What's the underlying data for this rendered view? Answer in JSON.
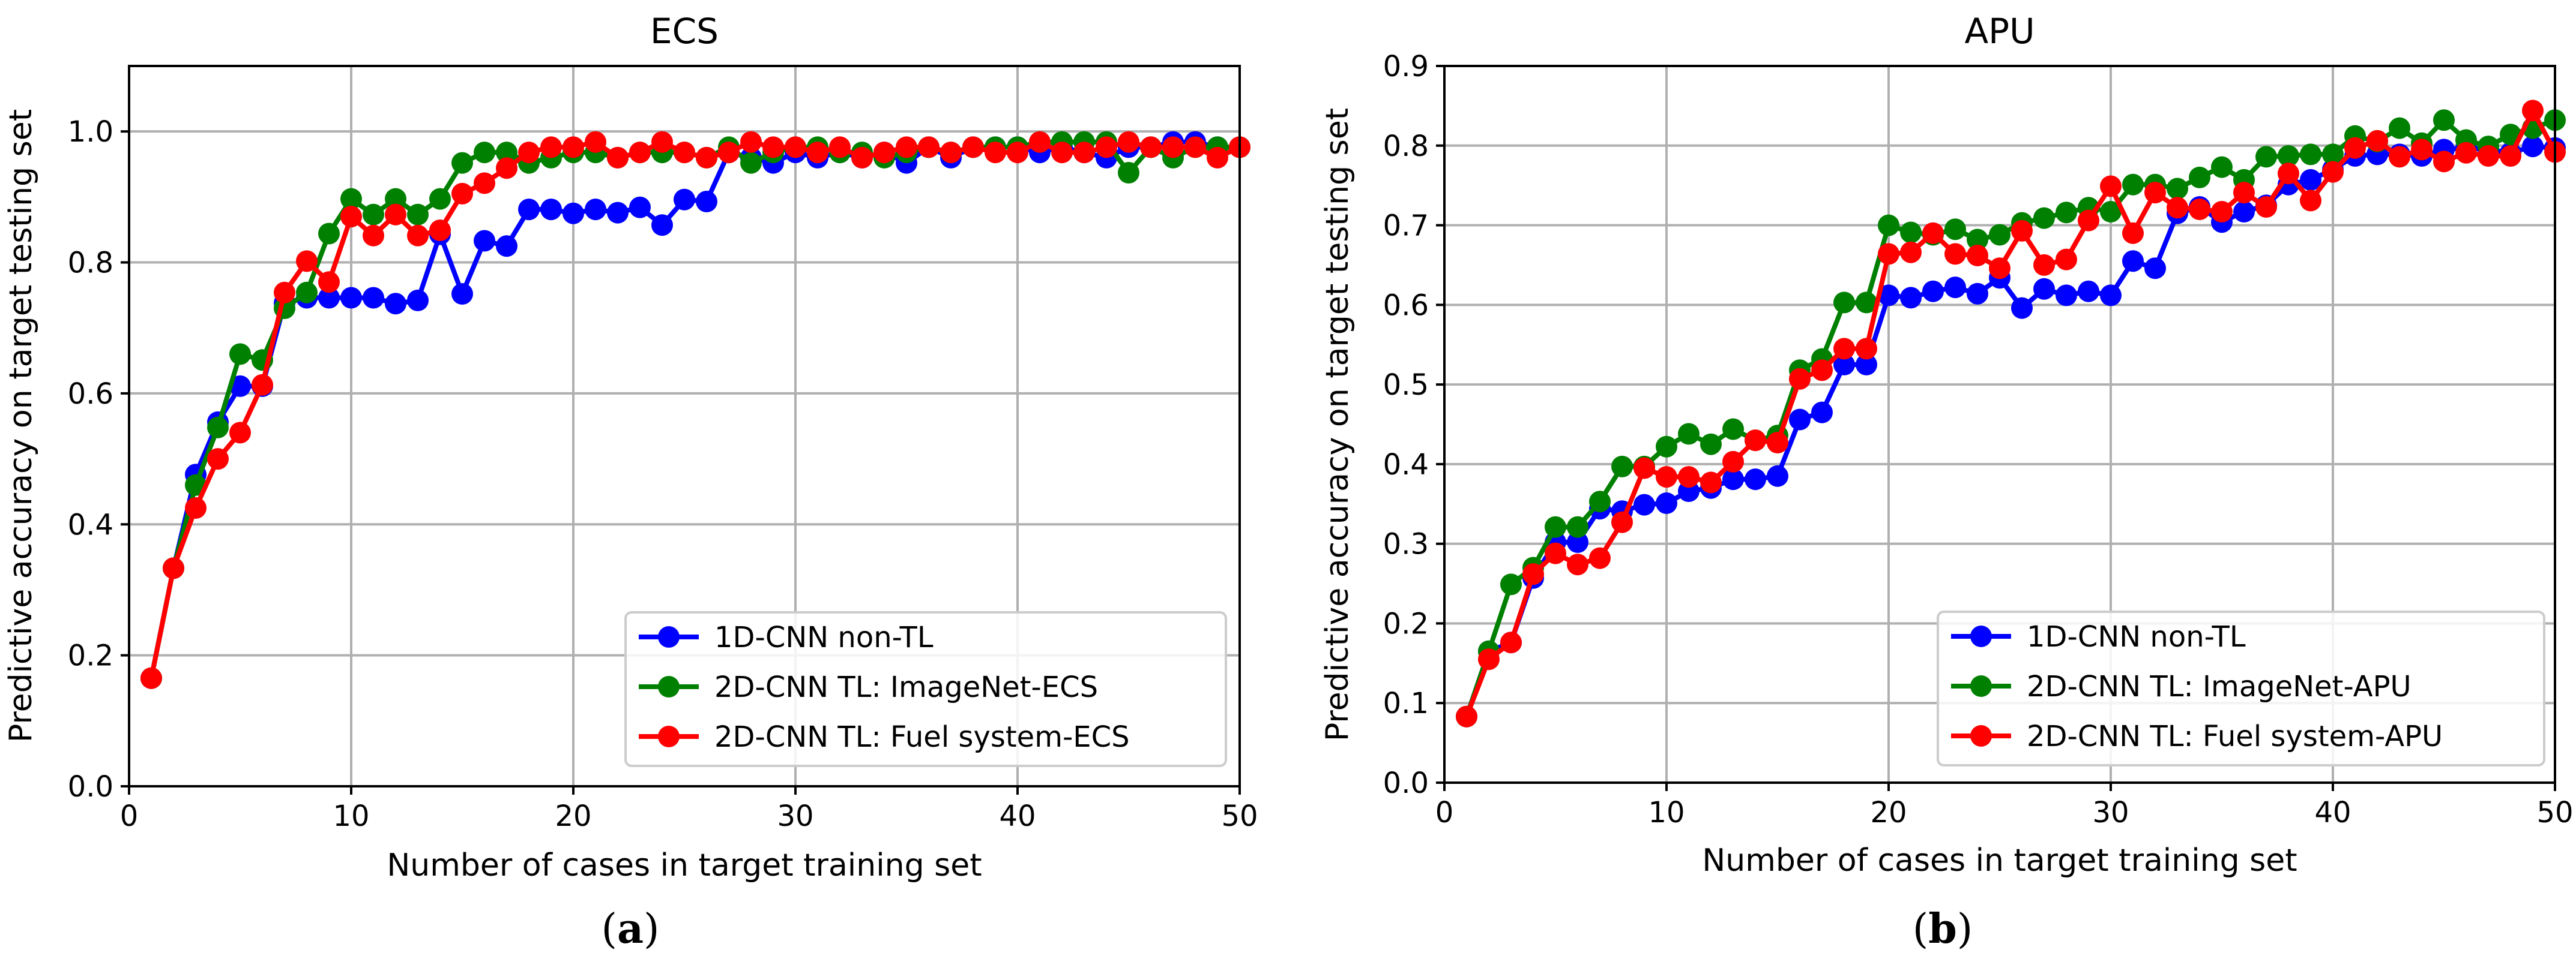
{
  "panels": [
    {
      "label_open": "(",
      "label_letter": "a",
      "label_close": ")"
    },
    {
      "label_open": "(",
      "label_letter": "b",
      "label_close": ")"
    }
  ],
  "chart_data": [
    {
      "type": "line",
      "title": "ECS",
      "xlabel": "Number of cases in target training set",
      "ylabel": "Predictive accuracy on target testing set",
      "xlim": [
        0,
        50
      ],
      "ylim": [
        0,
        1.1
      ],
      "xticks": [
        0,
        10,
        20,
        30,
        40,
        50
      ],
      "xtick_labels": [
        "0",
        "10",
        "20",
        "30",
        "40",
        "50"
      ],
      "yticks": [
        0,
        0.2,
        0.4,
        0.6,
        0.8,
        1.0
      ],
      "ytick_labels": [
        "0.0",
        "0.2",
        "0.4",
        "0.6",
        "0.8",
        "1.0"
      ],
      "grid": true,
      "legend_position": "bottom-right",
      "x": [
        1,
        2,
        3,
        4,
        5,
        6,
        7,
        8,
        9,
        10,
        11,
        12,
        13,
        14,
        15,
        16,
        17,
        18,
        19,
        20,
        21,
        22,
        23,
        24,
        25,
        26,
        27,
        28,
        29,
        30,
        31,
        32,
        33,
        34,
        35,
        36,
        37,
        38,
        39,
        40,
        41,
        42,
        43,
        44,
        45,
        46,
        47,
        48,
        49,
        50
      ],
      "series": [
        {
          "name": "1D-CNN non-TL",
          "color": "#0000ff",
          "values": [
            0.165,
            0.333,
            0.476,
            0.556,
            0.611,
            0.611,
            0.738,
            0.746,
            0.746,
            0.746,
            0.746,
            0.737,
            0.742,
            0.843,
            0.752,
            0.833,
            0.825,
            0.881,
            0.881,
            0.875,
            0.881,
            0.876,
            0.884,
            0.857,
            0.896,
            0.893,
            0.968,
            0.96,
            0.952,
            0.968,
            0.96,
            0.968,
            0.96,
            0.968,
            0.952,
            0.976,
            0.96,
            0.976,
            0.976,
            0.976,
            0.968,
            0.976,
            0.968,
            0.96,
            0.976,
            0.976,
            0.984,
            0.984,
            0.976,
            0.976
          ]
        },
        {
          "name": "2D-CNN TL: ImageNet-ECS",
          "color": "#008000",
          "values": [
            0.165,
            0.333,
            0.46,
            0.548,
            0.66,
            0.651,
            0.73,
            0.754,
            0.844,
            0.897,
            0.873,
            0.897,
            0.873,
            0.897,
            0.952,
            0.968,
            0.968,
            0.952,
            0.96,
            0.968,
            0.968,
            0.96,
            0.968,
            0.968,
            0.968,
            0.96,
            0.976,
            0.952,
            0.968,
            0.976,
            0.976,
            0.968,
            0.968,
            0.96,
            0.968,
            0.976,
            0.968,
            0.976,
            0.976,
            0.976,
            0.984,
            0.984,
            0.984,
            0.984,
            0.937,
            0.976,
            0.96,
            0.976,
            0.976,
            0.976
          ]
        },
        {
          "name": "2D-CNN TL: Fuel system-ECS",
          "color": "#ff0000",
          "values": [
            0.165,
            0.333,
            0.425,
            0.5,
            0.54,
            0.613,
            0.754,
            0.802,
            0.77,
            0.87,
            0.841,
            0.873,
            0.841,
            0.849,
            0.905,
            0.921,
            0.944,
            0.968,
            0.976,
            0.976,
            0.984,
            0.96,
            0.968,
            0.984,
            0.968,
            0.96,
            0.968,
            0.984,
            0.976,
            0.976,
            0.968,
            0.976,
            0.96,
            0.968,
            0.976,
            0.976,
            0.968,
            0.976,
            0.968,
            0.968,
            0.984,
            0.968,
            0.968,
            0.976,
            0.984,
            0.976,
            0.976,
            0.976,
            0.96,
            0.976
          ]
        }
      ]
    },
    {
      "type": "line",
      "title": "APU",
      "xlabel": "Number of cases in target training set",
      "ylabel": "Predictive accuracy on target testing set",
      "xlim": [
        0,
        50
      ],
      "ylim": [
        0,
        0.9
      ],
      "xticks": [
        0,
        10,
        20,
        30,
        40,
        50
      ],
      "xtick_labels": [
        "0",
        "10",
        "20",
        "30",
        "40",
        "50"
      ],
      "yticks": [
        0,
        0.1,
        0.2,
        0.3,
        0.4,
        0.5,
        0.6,
        0.7,
        0.8,
        0.9
      ],
      "ytick_labels": [
        "0.0",
        "0.1",
        "0.2",
        "0.3",
        "0.4",
        "0.5",
        "0.6",
        "0.7",
        "0.8",
        "0.9"
      ],
      "grid": true,
      "legend_position": "bottom-right",
      "x": [
        1,
        2,
        3,
        4,
        5,
        6,
        7,
        8,
        9,
        10,
        11,
        12,
        13,
        14,
        15,
        16,
        17,
        18,
        19,
        20,
        21,
        22,
        23,
        24,
        25,
        26,
        27,
        28,
        29,
        30,
        31,
        32,
        33,
        34,
        35,
        36,
        37,
        38,
        39,
        40,
        41,
        42,
        43,
        44,
        45,
        46,
        47,
        48,
        49,
        50
      ],
      "series": [
        {
          "name": "1D-CNN non-TL",
          "color": "#0000ff",
          "values": [
            0.083,
            0.165,
            0.176,
            0.257,
            0.302,
            0.302,
            0.344,
            0.341,
            0.349,
            0.351,
            0.366,
            0.37,
            0.381,
            0.381,
            0.385,
            0.456,
            0.465,
            0.525,
            0.525,
            0.612,
            0.609,
            0.617,
            0.622,
            0.614,
            0.634,
            0.596,
            0.62,
            0.612,
            0.617,
            0.612,
            0.655,
            0.646,
            0.715,
            0.723,
            0.704,
            0.717,
            0.725,
            0.751,
            0.757,
            0.77,
            0.787,
            0.789,
            0.789,
            0.787,
            0.795,
            0.797,
            0.795,
            0.791,
            0.799,
            0.797
          ]
        },
        {
          "name": "2D-CNN TL: ImageNet-APU",
          "color": "#008000",
          "values": [
            0.083,
            0.165,
            0.249,
            0.27,
            0.321,
            0.321,
            0.353,
            0.397,
            0.397,
            0.422,
            0.438,
            0.425,
            0.444,
            0.43,
            0.436,
            0.518,
            0.532,
            0.603,
            0.603,
            0.7,
            0.691,
            0.688,
            0.695,
            0.682,
            0.688,
            0.703,
            0.709,
            0.716,
            0.722,
            0.717,
            0.751,
            0.751,
            0.746,
            0.76,
            0.773,
            0.757,
            0.786,
            0.787,
            0.789,
            0.789,
            0.812,
            0.805,
            0.822,
            0.803,
            0.832,
            0.807,
            0.799,
            0.814,
            0.822,
            0.832
          ]
        },
        {
          "name": "2D-CNN TL: Fuel system-APU",
          "color": "#ff0000",
          "values": [
            0.083,
            0.155,
            0.176,
            0.262,
            0.288,
            0.274,
            0.282,
            0.327,
            0.395,
            0.384,
            0.384,
            0.377,
            0.403,
            0.43,
            0.427,
            0.507,
            0.518,
            0.545,
            0.545,
            0.664,
            0.666,
            0.69,
            0.664,
            0.662,
            0.646,
            0.693,
            0.65,
            0.657,
            0.706,
            0.749,
            0.69,
            0.741,
            0.722,
            0.72,
            0.717,
            0.741,
            0.723,
            0.765,
            0.731,
            0.767,
            0.797,
            0.806,
            0.786,
            0.795,
            0.78,
            0.791,
            0.787,
            0.787,
            0.844,
            0.792
          ]
        }
      ]
    }
  ]
}
